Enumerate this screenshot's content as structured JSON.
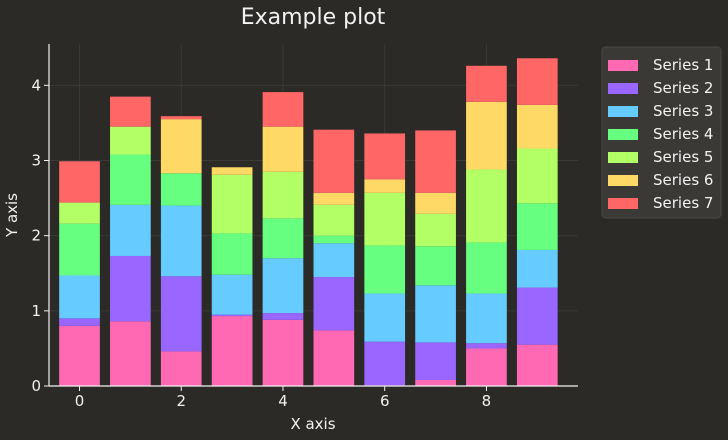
{
  "chart_data": {
    "type": "bar",
    "stacked": true,
    "title": "Example plot",
    "xlabel": "X axis",
    "ylabel": "Y axis",
    "x": [
      0,
      1,
      2,
      3,
      4,
      5,
      6,
      7,
      8,
      9
    ],
    "xticks": [
      0,
      2,
      4,
      6,
      8
    ],
    "yticks": [
      0,
      1,
      2,
      3,
      4
    ],
    "xlim": [
      -0.6,
      9.8
    ],
    "ylim": [
      0,
      4.55
    ],
    "grid": true,
    "legend_position": "top-right outside",
    "background": "#2b2a26",
    "series": [
      {
        "name": "Series 1",
        "color": "#ff69b4",
        "values": [
          0.8,
          0.86,
          0.46,
          0.93,
          0.88,
          0.74,
          0.01,
          0.08,
          0.5,
          0.55
        ]
      },
      {
        "name": "Series 2",
        "color": "#9966ff",
        "values": [
          0.1,
          0.87,
          1.0,
          0.02,
          0.09,
          0.71,
          0.58,
          0.5,
          0.07,
          0.76
        ]
      },
      {
        "name": "Series 3",
        "color": "#66ccff",
        "values": [
          0.57,
          0.68,
          0.94,
          0.53,
          0.73,
          0.45,
          0.64,
          0.76,
          0.66,
          0.5
        ]
      },
      {
        "name": "Series 4",
        "color": "#66ff80",
        "values": [
          0.69,
          0.67,
          0.43,
          0.55,
          0.53,
          0.1,
          0.64,
          0.52,
          0.68,
          0.62
        ]
      },
      {
        "name": "Series 5",
        "color": "#b3ff66",
        "values": [
          0.28,
          0.37,
          0.0,
          0.78,
          0.62,
          0.41,
          0.7,
          0.43,
          0.97,
          0.73
        ]
      },
      {
        "name": "Series 6",
        "color": "#ffd966",
        "values": [
          0.0,
          0.0,
          0.72,
          0.1,
          0.6,
          0.16,
          0.18,
          0.28,
          0.9,
          0.58
        ]
      },
      {
        "name": "Series 7",
        "color": "#ff6666",
        "values": [
          0.55,
          0.4,
          0.04,
          0.0,
          0.46,
          0.84,
          0.61,
          0.83,
          0.48,
          0.62
        ]
      }
    ]
  }
}
